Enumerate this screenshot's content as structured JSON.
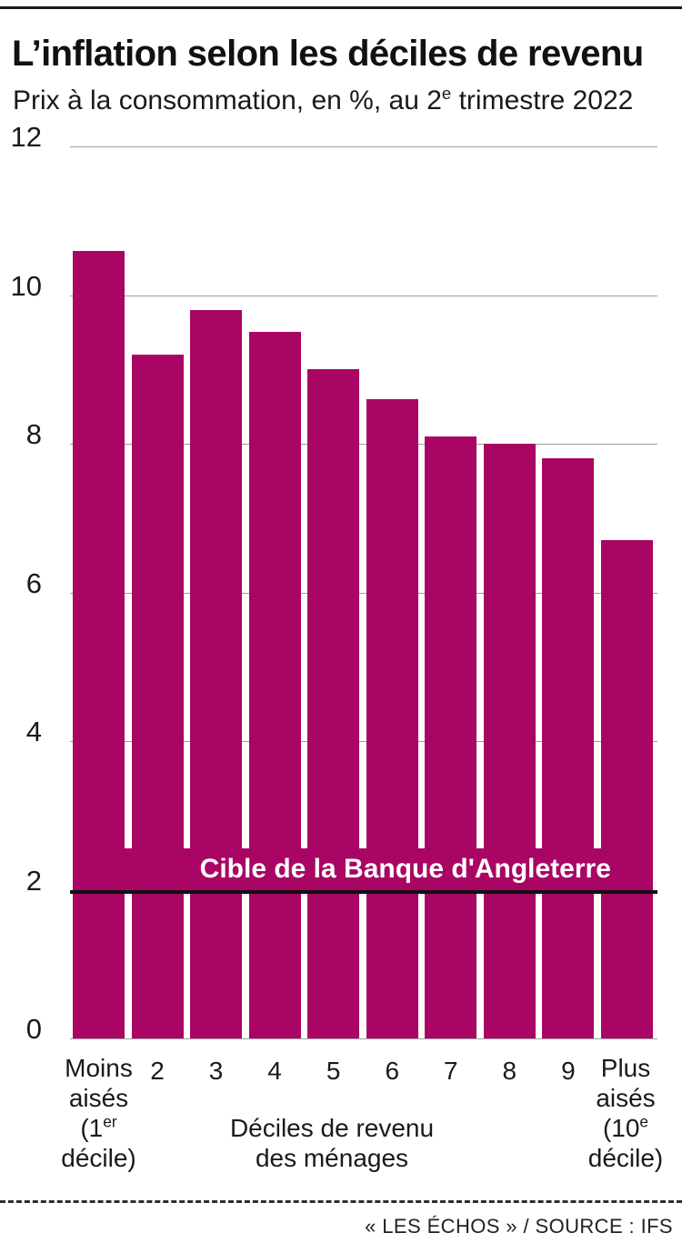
{
  "header": {
    "title": "L’inflation selon les déciles de revenu",
    "subtitle_parts": {
      "pre": "Prix à la consommation, en %, au 2",
      "sup": "e",
      "post": " trimestre 2022"
    }
  },
  "chart_data": {
    "type": "bar",
    "title": "L’inflation selon les déciles de revenu",
    "subtitle": "Prix à la consommation, en %, au 2e trimestre 2022",
    "categories": [
      "Moins aisés (1er décile)",
      "2",
      "3",
      "4",
      "5",
      "6",
      "7",
      "8",
      "9",
      "Plus aisés (10e décile)"
    ],
    "values": [
      10.6,
      9.2,
      9.8,
      9.5,
      9.0,
      8.6,
      8.1,
      8.0,
      7.8,
      6.7
    ],
    "unit": "%",
    "ylim": [
      0,
      12
    ],
    "yticks": [
      0,
      2,
      4,
      6,
      8,
      10,
      12
    ],
    "grid": "horizontal",
    "bar_color": "#a80564",
    "grid_color": "#9e9e9e",
    "reference_line": {
      "value": 2,
      "label": "Cible de la Banque d'Angleterre",
      "line_color": "#111111",
      "label_text_color": "#ffffff"
    },
    "xlabel": "Déciles de revenu des ménages"
  },
  "xaxis": {
    "first_label": {
      "line1": "Moins",
      "line2": "aisés",
      "line3_pre": "(1",
      "line3_sup": "er",
      "line4": "décile)"
    },
    "last_label": {
      "line1": "Plus",
      "line2": "aisés",
      "line3_pre": "(10",
      "line3_sup": "e",
      "line4": "décile)"
    },
    "axis_title_line1": "Déciles de revenu",
    "axis_title_line2": "des ménages"
  },
  "footer": {
    "credit": "« LES ÉCHOS » / SOURCE : IFS"
  }
}
